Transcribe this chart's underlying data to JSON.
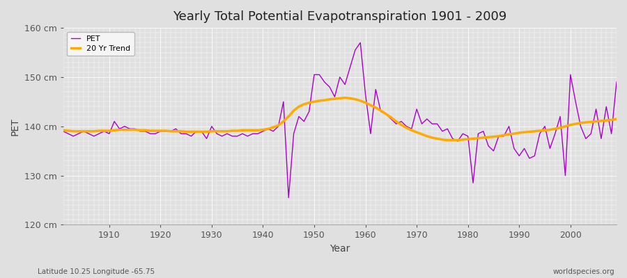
{
  "title": "Yearly Total Potential Evapotranspiration 1901 - 2009",
  "xlabel": "Year",
  "ylabel": "PET",
  "subtitle_left": "Latitude 10.25 Longitude -65.75",
  "subtitle_right": "worldspecies.org",
  "ylim": [
    120,
    160
  ],
  "xlim": [
    1901,
    2009
  ],
  "yticks": [
    120,
    130,
    140,
    150,
    160
  ],
  "xticks": [
    1910,
    1920,
    1930,
    1940,
    1950,
    1960,
    1970,
    1980,
    1990,
    2000
  ],
  "pet_color": "#aa00cc",
  "trend_color": "#ffaa00",
  "bg_color": "#e0e0e0",
  "plot_bg_color": "#e0e0e0",
  "grid_color": "#ffffff",
  "legend_labels": [
    "PET",
    "20 Yr Trend"
  ],
  "years": [
    1901,
    1902,
    1903,
    1904,
    1905,
    1906,
    1907,
    1908,
    1909,
    1910,
    1911,
    1912,
    1913,
    1914,
    1915,
    1916,
    1917,
    1918,
    1919,
    1920,
    1921,
    1922,
    1923,
    1924,
    1925,
    1926,
    1927,
    1928,
    1929,
    1930,
    1931,
    1932,
    1933,
    1934,
    1935,
    1936,
    1937,
    1938,
    1939,
    1940,
    1941,
    1942,
    1943,
    1944,
    1945,
    1946,
    1947,
    1948,
    1949,
    1950,
    1951,
    1952,
    1953,
    1954,
    1955,
    1956,
    1957,
    1958,
    1959,
    1960,
    1961,
    1962,
    1963,
    1964,
    1965,
    1966,
    1967,
    1968,
    1969,
    1970,
    1971,
    1972,
    1973,
    1974,
    1975,
    1976,
    1977,
    1978,
    1979,
    1980,
    1981,
    1982,
    1983,
    1984,
    1985,
    1986,
    1987,
    1988,
    1989,
    1990,
    1991,
    1992,
    1993,
    1994,
    1995,
    1996,
    1997,
    1998,
    1999,
    2000,
    2001,
    2002,
    2003,
    2004,
    2005,
    2006,
    2007,
    2008,
    2009
  ],
  "pet_values": [
    139.0,
    138.5,
    138.0,
    138.5,
    139.0,
    138.5,
    138.0,
    138.5,
    139.0,
    138.5,
    141.0,
    139.5,
    140.0,
    139.5,
    139.5,
    139.0,
    139.0,
    138.5,
    138.5,
    139.0,
    139.0,
    139.0,
    139.5,
    138.5,
    138.5,
    138.0,
    139.0,
    139.0,
    137.5,
    140.0,
    138.5,
    138.0,
    138.5,
    138.0,
    138.0,
    138.5,
    138.0,
    138.5,
    138.5,
    139.0,
    139.5,
    139.0,
    140.0,
    145.0,
    125.5,
    138.5,
    142.0,
    141.0,
    143.0,
    150.5,
    150.5,
    149.0,
    148.0,
    146.0,
    150.0,
    148.5,
    152.0,
    155.5,
    157.0,
    146.5,
    138.5,
    147.5,
    143.0,
    142.5,
    141.5,
    140.5,
    141.0,
    140.0,
    139.5,
    143.5,
    140.5,
    141.5,
    140.5,
    140.5,
    139.0,
    139.5,
    137.5,
    137.0,
    138.5,
    138.0,
    128.5,
    138.5,
    139.0,
    136.0,
    135.0,
    138.0,
    138.0,
    140.0,
    135.5,
    134.0,
    135.5,
    133.5,
    134.0,
    138.5,
    140.0,
    135.5,
    138.5,
    142.0,
    130.0,
    150.5,
    145.0,
    140.0,
    137.5,
    138.5,
    143.5,
    137.5,
    144.0,
    138.5,
    149.0
  ],
  "trend_values": [
    139.2,
    139.1,
    139.0,
    139.0,
    139.0,
    139.0,
    139.0,
    139.1,
    139.1,
    139.1,
    139.2,
    139.3,
    139.3,
    139.3,
    139.3,
    139.2,
    139.2,
    139.1,
    139.1,
    139.1,
    139.1,
    139.0,
    139.0,
    139.0,
    138.9,
    138.9,
    138.9,
    138.9,
    138.9,
    139.0,
    139.0,
    139.0,
    139.0,
    139.1,
    139.1,
    139.2,
    139.2,
    139.2,
    139.2,
    139.3,
    139.5,
    139.8,
    140.2,
    141.0,
    142.0,
    143.2,
    144.0,
    144.5,
    144.8,
    145.0,
    145.2,
    145.3,
    145.5,
    145.6,
    145.7,
    145.8,
    145.7,
    145.5,
    145.2,
    144.8,
    144.3,
    143.8,
    143.2,
    142.5,
    141.8,
    141.0,
    140.3,
    139.7,
    139.2,
    138.8,
    138.4,
    138.0,
    137.7,
    137.5,
    137.3,
    137.2,
    137.2,
    137.2,
    137.3,
    137.4,
    137.5,
    137.6,
    137.7,
    137.8,
    137.9,
    138.0,
    138.2,
    138.4,
    138.5,
    138.7,
    138.8,
    138.9,
    139.0,
    139.1,
    139.2,
    139.3,
    139.5,
    139.7,
    140.0,
    140.3,
    140.5,
    140.7,
    140.8,
    140.9,
    141.0,
    141.1,
    141.2,
    141.3,
    141.5
  ]
}
